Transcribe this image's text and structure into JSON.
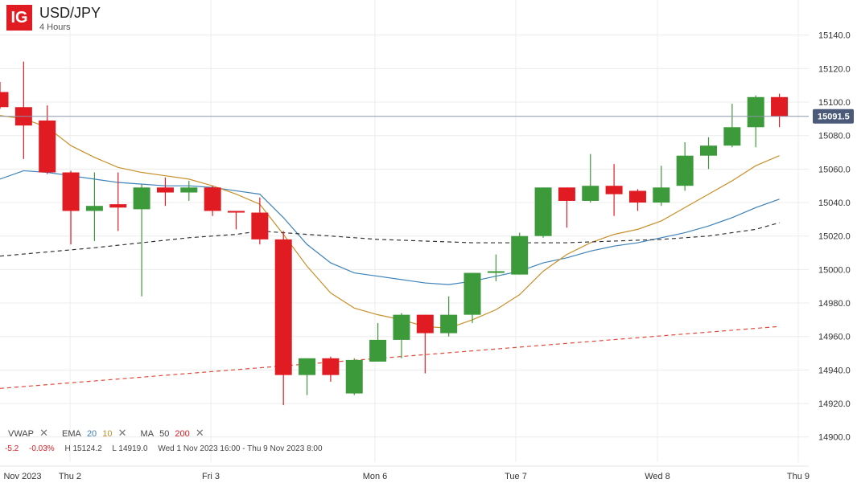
{
  "header": {
    "logo": "IG",
    "instrument": "USD/JPY",
    "timeframe": "4 Hours"
  },
  "indicators": {
    "vwap_label": "VWAP",
    "ema_label": "EMA",
    "ema_period_1": "20",
    "ema_period_2": "10",
    "ma_label": "MA",
    "ma_period_1": "50",
    "ma_period_2": "200",
    "remove_glyph": "✕"
  },
  "stats": {
    "change": "-5.2",
    "change_pct": "-0.03%",
    "high": "H 15124.2",
    "low": "L 14919.0",
    "range": "Wed 1 Nov 2023 16:00 - Thu 9 Nov 2023 8:00"
  },
  "price_tag": "15091.5",
  "colors": {
    "up": "#3d9a3a",
    "down": "#e01b22",
    "ema20": "#3d82b8",
    "ema10": "#c8902a",
    "ma50": "#333333",
    "ma200": "#e04a3a",
    "price_tag_bg": "#4a5a78",
    "grid": "#ececec"
  },
  "chart_data": {
    "type": "candlestick",
    "y_range": [
      14885,
      15160
    ],
    "y_ticks": [
      "15140.0",
      "15120.0",
      "15100.0",
      "15080.0",
      "15060.0",
      "15040.0",
      "15020.0",
      "15000.0",
      "14980.0",
      "14960.0",
      "14940.0",
      "14920.0",
      "14900.0"
    ],
    "x_labels": [
      "Nov 2023",
      "Thu 2",
      "Fri 3",
      "Mon 6",
      "Tue 7",
      "Wed 8",
      "Thu 9"
    ],
    "last_price": 15091.5,
    "candles": [
      {
        "o": 15106,
        "h": 15112,
        "c": 15097,
        "l": 15096
      },
      {
        "o": 15097,
        "h": 15124.2,
        "c": 15086,
        "l": 15066
      },
      {
        "o": 15089,
        "h": 15098,
        "c": 15058,
        "l": 15057
      },
      {
        "o": 15058,
        "h": 15059,
        "c": 15035,
        "l": 15015
      },
      {
        "o": 15035,
        "h": 15058,
        "c": 15038,
        "l": 15017
      },
      {
        "o": 15039,
        "h": 15058,
        "c": 15037,
        "l": 15023
      },
      {
        "o": 15036,
        "h": 15051,
        "c": 15049,
        "l": 14984
      },
      {
        "o": 15049,
        "h": 15055,
        "c": 15046,
        "l": 15038
      },
      {
        "o": 15046,
        "h": 15053,
        "c": 15049,
        "l": 15041
      },
      {
        "o": 15049,
        "h": 15050,
        "c": 15035,
        "l": 15032
      },
      {
        "o": 15035,
        "h": 15035,
        "c": 15034,
        "l": 15024
      },
      {
        "o": 15034,
        "h": 15043,
        "c": 15018,
        "l": 15015
      },
      {
        "o": 15018,
        "h": 15023,
        "c": 14937,
        "l": 14919
      },
      {
        "o": 14937,
        "h": 14947,
        "c": 14947,
        "l": 14925
      },
      {
        "o": 14947,
        "h": 14948,
        "c": 14937,
        "l": 14933
      },
      {
        "o": 14926,
        "h": 14947,
        "c": 14946,
        "l": 14925
      },
      {
        "o": 14945,
        "h": 14968,
        "c": 14958,
        "l": 14945
      },
      {
        "o": 14958,
        "h": 14974,
        "c": 14973,
        "l": 14947
      },
      {
        "o": 14973,
        "h": 14973,
        "c": 14962,
        "l": 14938
      },
      {
        "o": 14962,
        "h": 14984,
        "c": 14973,
        "l": 14960
      },
      {
        "o": 14973,
        "h": 14998,
        "c": 14998,
        "l": 14968
      },
      {
        "o": 14998,
        "h": 15009,
        "c": 14999,
        "l": 14993
      },
      {
        "o": 14997,
        "h": 15022,
        "c": 15020,
        "l": 14997
      },
      {
        "o": 15020,
        "h": 15049,
        "c": 15049,
        "l": 15019
      },
      {
        "o": 15049,
        "h": 15049,
        "c": 15041,
        "l": 15025
      },
      {
        "o": 15041,
        "h": 15069,
        "c": 15050,
        "l": 15040
      },
      {
        "o": 15050,
        "h": 15063,
        "c": 15045,
        "l": 15032
      },
      {
        "o": 15047,
        "h": 15048,
        "c": 15040,
        "l": 15035
      },
      {
        "o": 15040,
        "h": 15062,
        "c": 15049,
        "l": 15038
      },
      {
        "o": 15050,
        "h": 15076,
        "c": 15068,
        "l": 15047
      },
      {
        "o": 15068,
        "h": 15079,
        "c": 15074,
        "l": 15060
      },
      {
        "o": 15074,
        "h": 15099,
        "c": 15085,
        "l": 15073
      },
      {
        "o": 15085,
        "h": 15104,
        "c": 15103,
        "l": 15073
      },
      {
        "o": 15103,
        "h": 15105,
        "c": 15091.5,
        "l": 15085
      }
    ],
    "lines": [
      {
        "id": "ema20",
        "style": "solid",
        "x": [
          0,
          1,
          2,
          3,
          4,
          5,
          6,
          7,
          8,
          9,
          10,
          11,
          12,
          13,
          14,
          15,
          16,
          17,
          18,
          19,
          20,
          21,
          22,
          23,
          24,
          25,
          26,
          27,
          28,
          29,
          30,
          31,
          32,
          33
        ],
        "y": [
          15054,
          15059,
          15058,
          15056,
          15054,
          15052,
          15051,
          15050,
          15050,
          15049,
          15047,
          15045,
          15031,
          15015,
          15004,
          14998,
          14996,
          14994,
          14992,
          14991,
          14993,
          14996,
          14999,
          15004,
          15007,
          15011,
          15014,
          15016,
          15019,
          15022,
          15026,
          15031,
          15037,
          15042
        ]
      },
      {
        "id": "ema10",
        "style": "solid",
        "x": [
          0,
          1,
          2,
          3,
          4,
          5,
          6,
          7,
          8,
          9,
          10,
          11,
          12,
          13,
          14,
          15,
          16,
          17,
          18,
          19,
          20,
          21,
          22,
          23,
          24,
          25,
          26,
          27,
          28,
          29,
          30,
          31,
          32,
          33
        ],
        "y": [
          15092,
          15090,
          15085,
          15074,
          15067,
          15061,
          15058,
          15056,
          15054,
          15050,
          15045,
          15039,
          15021,
          15002,
          14986,
          14977,
          14973,
          14970,
          14966,
          14965,
          14970,
          14976,
          14985,
          14999,
          15009,
          15016,
          15021,
          15024,
          15029,
          15037,
          15045,
          15053,
          15062,
          15068
        ]
      },
      {
        "id": "ma50",
        "style": "dashed",
        "x": [
          0,
          4,
          8,
          10,
          11,
          12,
          14,
          16,
          18,
          20,
          22,
          24,
          26,
          28,
          30,
          32,
          33
        ],
        "y": [
          15008,
          15013,
          15019,
          15021,
          15023,
          15022,
          15020,
          15018,
          15017,
          15016,
          15016,
          15016,
          15017,
          15018,
          15020,
          15024,
          15028
        ]
      },
      {
        "id": "ma200",
        "style": "dashed",
        "x": [
          0,
          33
        ],
        "y": [
          14929,
          14966
        ]
      }
    ]
  }
}
